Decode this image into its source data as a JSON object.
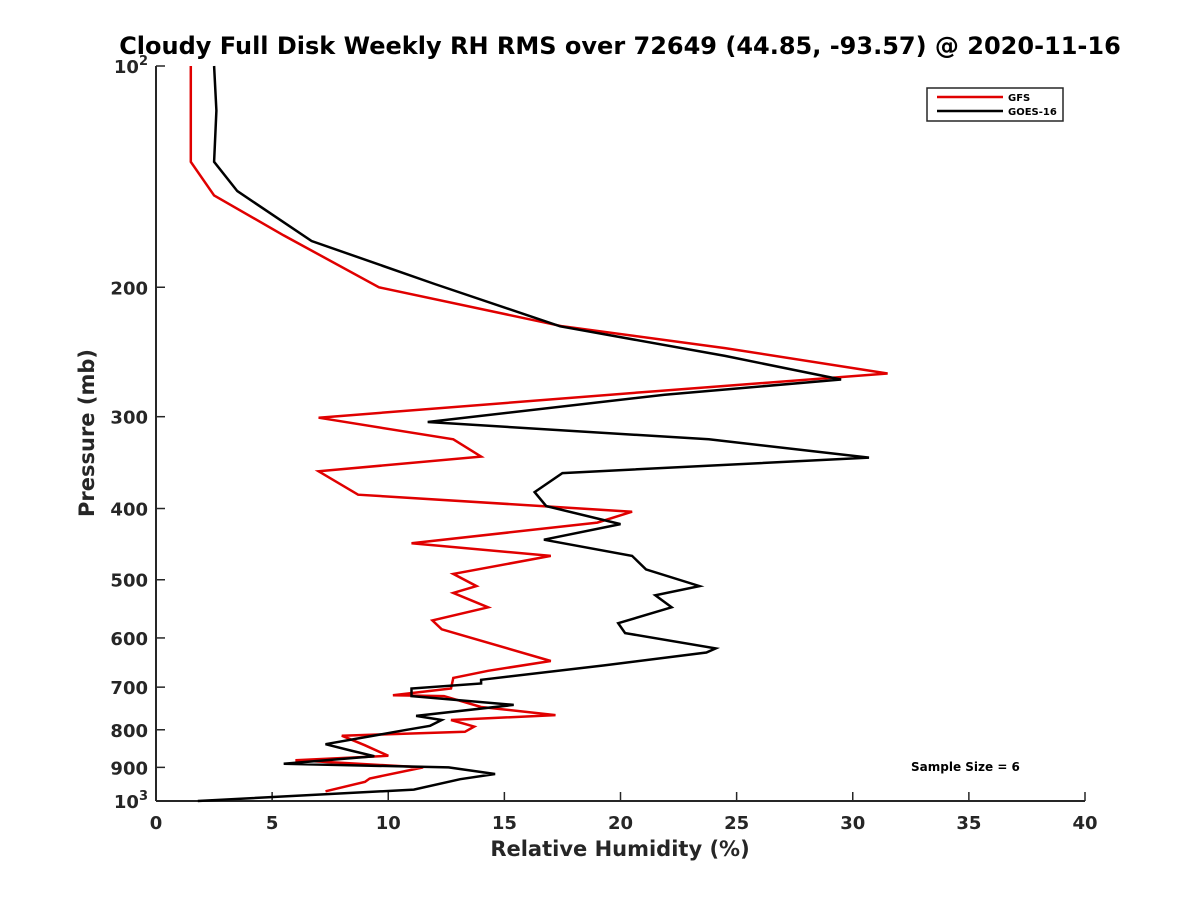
{
  "chart_data": {
    "type": "line",
    "title": "Cloudy Full Disk Weekly RH RMS over 72649 (44.85, -93.57) @ 2020-11-16",
    "xlabel": "Relative Humidity (%)",
    "ylabel": "Pressure (mb)",
    "xlim": [
      0,
      40
    ],
    "ylim": [
      100,
      1000
    ],
    "y_scale": "log",
    "y_reversed": true,
    "x_ticks": [
      0,
      5,
      10,
      15,
      20,
      25,
      30,
      35,
      40
    ],
    "x_tick_labels": [
      "0",
      "5",
      "10",
      "15",
      "20",
      "25",
      "30",
      "35",
      "40"
    ],
    "y_ticks": [
      100,
      200,
      300,
      400,
      500,
      600,
      700,
      800,
      900,
      1000
    ],
    "y_tick_labels": [
      {
        "base": "10",
        "sup": "2"
      },
      {
        "base": "200",
        "sup": ""
      },
      {
        "base": "300",
        "sup": ""
      },
      {
        "base": "400",
        "sup": ""
      },
      {
        "base": "500",
        "sup": ""
      },
      {
        "base": "600",
        "sup": ""
      },
      {
        "base": "700",
        "sup": ""
      },
      {
        "base": "800",
        "sup": ""
      },
      {
        "base": "900",
        "sup": ""
      },
      {
        "base": "10",
        "sup": "3"
      }
    ],
    "grid": false,
    "legend_position": "top-right",
    "annotation": "Sample Size = 6",
    "series": [
      {
        "name": "GFS",
        "color": "#e00000",
        "x": [
          1.5,
          1.5,
          1.5,
          2.5,
          5.5,
          9.6,
          17.5,
          24.5,
          31.5,
          21.5,
          7.0,
          12.8,
          14.0,
          7.0,
          8.7,
          20.5,
          19.0,
          11.0,
          17.0,
          12.8,
          13.8,
          12.8,
          14.3,
          11.9,
          12.3,
          17.0,
          14.3,
          12.8,
          12.7,
          10.2,
          12.4,
          14.0,
          17.2,
          12.7,
          13.7,
          13.3,
          8.0,
          9.0,
          10.0,
          6.0,
          11.5,
          9.2,
          9.0,
          7.3
        ],
        "y": [
          100,
          115,
          135,
          150,
          170,
          200,
          226,
          242,
          262,
          277,
          301,
          322,
          340,
          356,
          383,
          404,
          418,
          446,
          464,
          491,
          510,
          521,
          545,
          568,
          584,
          645,
          665,
          680,
          703,
          718,
          720,
          745,
          764,
          776,
          792,
          805,
          815,
          840,
          868,
          880,
          900,
          932,
          942,
          970
        ]
      },
      {
        "name": "GOES-16",
        "color": "#000000",
        "x": [
          2.5,
          2.6,
          2.5,
          3.5,
          6.7,
          12.0,
          17.4,
          24.5,
          29.5,
          21.9,
          11.7,
          23.8,
          30.7,
          17.5,
          16.3,
          16.8,
          20.0,
          16.7,
          20.5,
          21.1,
          23.4,
          21.5,
          22.2,
          19.9,
          20.2,
          24.1,
          23.7,
          19.3,
          14.0,
          14.0,
          11.0,
          11.0,
          15.4,
          11.2,
          12.3,
          11.8,
          10.7,
          7.3,
          8.4,
          9.4,
          5.5,
          12.6,
          14.6,
          13.1,
          11.1,
          1.8
        ],
        "y": [
          100,
          115,
          135,
          148,
          173,
          198,
          226,
          248,
          267,
          280,
          305,
          322,
          341,
          358,
          380,
          397,
          420,
          441,
          464,
          484,
          510,
          525,
          545,
          573,
          591,
          620,
          628,
          654,
          684,
          692,
          703,
          720,
          740,
          766,
          776,
          790,
          801,
          837,
          854,
          869,
          890,
          900,
          919,
          934,
          965,
          1000
        ]
      }
    ]
  }
}
